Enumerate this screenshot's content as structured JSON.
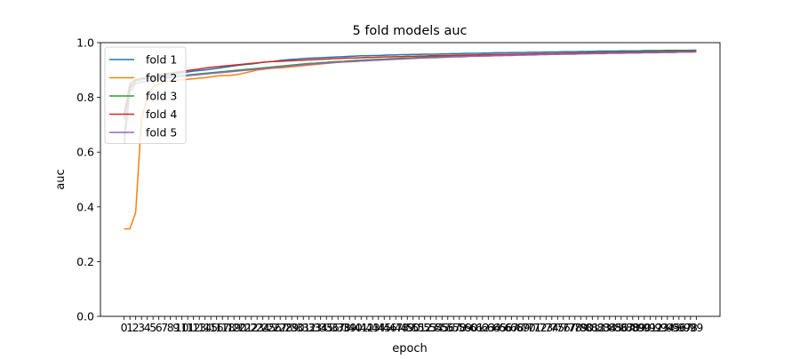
{
  "chart_data": {
    "type": "line",
    "title": "5 fold models auc",
    "xlabel": "epoch",
    "ylabel": "auc",
    "ylim": [
      0,
      1.0
    ],
    "xlim": [
      -4.1,
      103.1
    ],
    "y_ticks": [
      0.0,
      0.2,
      0.4,
      0.6,
      0.8,
      1.0
    ],
    "y_tick_labels": [
      "0.0",
      "0.2",
      "0.4",
      "0.6",
      "0.8",
      "1.0"
    ],
    "x_tick_interval": 1,
    "x_tick_labels": [
      "0",
      "1",
      "2",
      "3",
      "4",
      "5",
      "6",
      "7",
      "8",
      "9",
      "10",
      "11",
      "12",
      "13",
      "14",
      "15",
      "16",
      "17",
      "18",
      "19",
      "20",
      "21",
      "22",
      "23",
      "24",
      "25",
      "26",
      "27",
      "28",
      "29",
      "30",
      "31",
      "32",
      "33",
      "34",
      "35",
      "36",
      "37",
      "38",
      "39",
      "40",
      "41",
      "42",
      "43",
      "44",
      "45",
      "46",
      "47",
      "48",
      "49",
      "50",
      "51",
      "52",
      "53",
      "54",
      "55",
      "56",
      "57",
      "58",
      "59",
      "60",
      "61",
      "62",
      "63",
      "64",
      "65",
      "66",
      "67",
      "68",
      "69",
      "70",
      "71",
      "72",
      "73",
      "74",
      "75",
      "76",
      "77",
      "78",
      "79",
      "80",
      "81",
      "82",
      "83",
      "84",
      "85",
      "86",
      "87",
      "88",
      "89",
      "90",
      "91",
      "92",
      "93",
      "94",
      "95",
      "96",
      "97",
      "98",
      "99"
    ],
    "grid": false,
    "legend_position": "top-left",
    "series": [
      {
        "name": "fold 1",
        "color": "#1f77b4",
        "x_start": 0,
        "values": [
          0.72,
          0.84,
          0.86,
          0.865,
          0.87,
          0.872,
          0.878,
          0.88,
          0.884,
          0.886,
          0.89,
          0.893,
          0.896,
          0.898,
          0.9,
          0.903,
          0.906,
          0.909,
          0.912,
          0.915,
          0.918,
          0.92,
          0.922,
          0.925,
          0.928,
          0.93,
          0.932,
          0.935,
          0.937,
          0.939,
          0.94,
          0.942,
          0.943,
          0.944,
          0.945,
          0.946,
          0.947,
          0.948,
          0.949,
          0.95,
          0.951,
          0.952,
          0.952,
          0.953,
          0.953,
          0.954,
          0.955,
          0.955,
          0.956,
          0.956,
          0.957,
          0.957,
          0.958,
          0.958,
          0.958,
          0.959,
          0.959,
          0.96,
          0.96,
          0.961,
          0.961,
          0.961,
          0.962,
          0.962,
          0.963,
          0.963,
          0.963,
          0.964,
          0.964,
          0.964,
          0.965,
          0.965,
          0.965,
          0.966,
          0.966,
          0.966,
          0.967,
          0.967,
          0.967,
          0.968,
          0.968,
          0.968,
          0.969,
          0.969,
          0.969,
          0.969,
          0.97,
          0.97,
          0.97,
          0.97,
          0.971,
          0.971,
          0.971,
          0.971,
          0.972,
          0.972,
          0.972,
          0.972,
          0.972,
          0.973
        ]
      },
      {
        "name": "fold 2",
        "color": "#ff7f0e",
        "x_start": 0,
        "values": [
          0.32,
          0.32,
          0.38,
          0.72,
          0.8,
          0.84,
          0.85,
          0.856,
          0.86,
          0.862,
          0.864,
          0.866,
          0.868,
          0.87,
          0.872,
          0.875,
          0.878,
          0.88,
          0.88,
          0.882,
          0.885,
          0.89,
          0.895,
          0.9,
          0.902,
          0.905,
          0.907,
          0.908,
          0.91,
          0.912,
          0.914,
          0.916,
          0.918,
          0.92,
          0.922,
          0.924,
          0.926,
          0.928,
          0.929,
          0.93,
          0.931,
          0.933,
          0.934,
          0.936,
          0.937,
          0.938,
          0.939,
          0.94,
          0.941,
          0.942,
          0.943,
          0.944,
          0.945,
          0.946,
          0.947,
          0.948,
          0.949,
          0.95,
          0.951,
          0.951,
          0.952,
          0.952,
          0.953,
          0.953,
          0.954,
          0.954,
          0.955,
          0.955,
          0.956,
          0.956,
          0.957,
          0.957,
          0.958,
          0.958,
          0.959,
          0.959,
          0.96,
          0.96,
          0.96,
          0.961,
          0.961,
          0.962,
          0.962,
          0.962,
          0.963,
          0.963,
          0.963,
          0.964,
          0.964,
          0.964,
          0.965,
          0.965,
          0.965,
          0.966,
          0.966,
          0.966,
          0.967,
          0.967,
          0.968,
          0.968
        ]
      },
      {
        "name": "fold 3",
        "color": "#2ca02c",
        "x_start": 0,
        "values": [
          0.66,
          0.83,
          0.86,
          0.865,
          0.868,
          0.87,
          0.872,
          0.874,
          0.876,
          0.878,
          0.88,
          0.882,
          0.884,
          0.886,
          0.888,
          0.89,
          0.892,
          0.894,
          0.896,
          0.898,
          0.9,
          0.902,
          0.904,
          0.906,
          0.908,
          0.91,
          0.912,
          0.914,
          0.916,
          0.918,
          0.92,
          0.922,
          0.924,
          0.925,
          0.927,
          0.928,
          0.93,
          0.931,
          0.932,
          0.934,
          0.935,
          0.936,
          0.937,
          0.938,
          0.939,
          0.94,
          0.941,
          0.942,
          0.943,
          0.944,
          0.945,
          0.946,
          0.947,
          0.948,
          0.949,
          0.95,
          0.95,
          0.951,
          0.952,
          0.952,
          0.953,
          0.954,
          0.954,
          0.955,
          0.955,
          0.956,
          0.956,
          0.957,
          0.957,
          0.958,
          0.958,
          0.959,
          0.959,
          0.96,
          0.96,
          0.961,
          0.961,
          0.962,
          0.962,
          0.963,
          0.963,
          0.964,
          0.964,
          0.965,
          0.965,
          0.966,
          0.966,
          0.966,
          0.967,
          0.967,
          0.968,
          0.968,
          0.968,
          0.969,
          0.969,
          0.969,
          0.97,
          0.97,
          0.97,
          0.97
        ]
      },
      {
        "name": "fold 4",
        "color": "#d62728",
        "x_start": 0,
        "values": [
          0.74,
          0.85,
          0.865,
          0.87,
          0.874,
          0.878,
          0.882,
          0.886,
          0.889,
          0.892,
          0.895,
          0.898,
          0.901,
          0.904,
          0.907,
          0.91,
          0.912,
          0.914,
          0.916,
          0.918,
          0.92,
          0.922,
          0.924,
          0.926,
          0.928,
          0.93,
          0.931,
          0.932,
          0.933,
          0.934,
          0.935,
          0.936,
          0.937,
          0.938,
          0.939,
          0.94,
          0.941,
          0.942,
          0.943,
          0.944,
          0.944,
          0.945,
          0.946,
          0.946,
          0.947,
          0.948,
          0.948,
          0.949,
          0.949,
          0.95,
          0.95,
          0.951,
          0.951,
          0.952,
          0.952,
          0.953,
          0.953,
          0.954,
          0.954,
          0.955,
          0.955,
          0.955,
          0.956,
          0.956,
          0.957,
          0.957,
          0.957,
          0.958,
          0.958,
          0.958,
          0.959,
          0.959,
          0.959,
          0.96,
          0.96,
          0.96,
          0.961,
          0.961,
          0.961,
          0.962,
          0.962,
          0.962,
          0.963,
          0.963,
          0.963,
          0.964,
          0.964,
          0.964,
          0.965,
          0.965,
          0.965,
          0.966,
          0.966,
          0.966,
          0.967,
          0.967,
          0.967,
          0.968,
          0.968,
          0.968
        ]
      },
      {
        "name": "fold 5",
        "color": "#9467bd",
        "x_start": 0,
        "values": [
          0.63,
          0.82,
          0.85,
          0.855,
          0.86,
          0.863,
          0.866,
          0.869,
          0.872,
          0.875,
          0.877,
          0.879,
          0.881,
          0.883,
          0.885,
          0.887,
          0.889,
          0.891,
          0.893,
          0.895,
          0.897,
          0.899,
          0.901,
          0.903,
          0.905,
          0.907,
          0.909,
          0.911,
          0.913,
          0.915,
          0.917,
          0.919,
          0.921,
          0.922,
          0.924,
          0.925,
          0.927,
          0.928,
          0.93,
          0.931,
          0.932,
          0.933,
          0.934,
          0.935,
          0.936,
          0.937,
          0.938,
          0.939,
          0.94,
          0.941,
          0.942,
          0.943,
          0.944,
          0.945,
          0.945,
          0.946,
          0.947,
          0.948,
          0.948,
          0.949,
          0.95,
          0.95,
          0.951,
          0.951,
          0.952,
          0.952,
          0.953,
          0.953,
          0.954,
          0.954,
          0.955,
          0.955,
          0.956,
          0.956,
          0.957,
          0.957,
          0.958,
          0.958,
          0.958,
          0.959,
          0.959,
          0.96,
          0.96,
          0.96,
          0.961,
          0.961,
          0.961,
          0.962,
          0.962,
          0.962,
          0.963,
          0.963,
          0.963,
          0.964,
          0.964,
          0.964,
          0.965,
          0.965,
          0.965,
          0.966
        ]
      }
    ]
  }
}
